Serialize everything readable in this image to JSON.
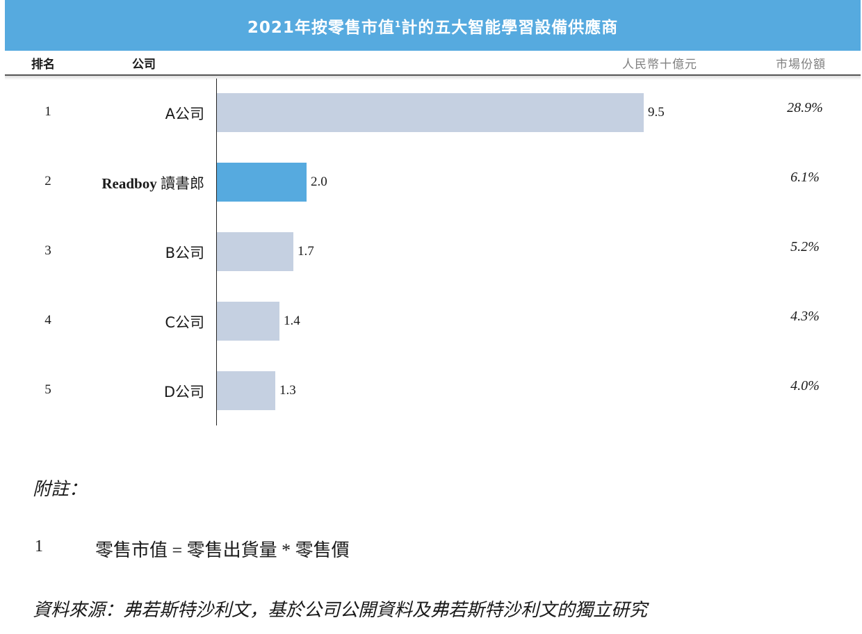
{
  "title": {
    "main": "2021年按零售市值",
    "superscript": "1",
    "suffix": "計的五大智能學習設備供應商"
  },
  "headers": {
    "rank": "排名",
    "company": "公司",
    "unit": "人民幣十億元",
    "share": "市場份額"
  },
  "colors": {
    "title_bg": "#56aadf",
    "bar_default": "#c5d0e1",
    "bar_highlight": "#56aadf"
  },
  "rows": [
    {
      "rank": "1",
      "company": "A公司",
      "value_label": "9.5",
      "share": "28.9%"
    },
    {
      "rank": "2",
      "company_brand": "Readboy",
      "company": "讀書郎",
      "value_label": "2.0",
      "share": "6.1%"
    },
    {
      "rank": "3",
      "company": "B公司",
      "value_label": "1.7",
      "share": "5.2%"
    },
    {
      "rank": "4",
      "company": "C公司",
      "value_label": "1.4",
      "share": "4.3%"
    },
    {
      "rank": "5",
      "company": "D公司",
      "value_label": "1.3",
      "share": "4.0%"
    }
  ],
  "notes": {
    "label": "附註：",
    "items": [
      {
        "num": "1",
        "text": "零售市值 = 零售出貨量 * 零售價"
      }
    ],
    "source": "資料來源：弗若斯特沙利文，基於公司公開資料及弗若斯特沙利文的獨立研究"
  },
  "chart_data": {
    "type": "bar",
    "orientation": "horizontal",
    "title": "2021年按零售市值1計的五大智能學習設備供應商",
    "categories": [
      "A公司",
      "Readboy 讀書郎",
      "B公司",
      "C公司",
      "D公司"
    ],
    "values": [
      9.5,
      2.0,
      1.7,
      1.4,
      1.3
    ],
    "market_share": [
      "28.9%",
      "6.1%",
      "5.2%",
      "4.3%",
      "4.0%"
    ],
    "unit": "人民幣十億元",
    "highlight_index": 1,
    "grid": false,
    "legend": "none"
  }
}
